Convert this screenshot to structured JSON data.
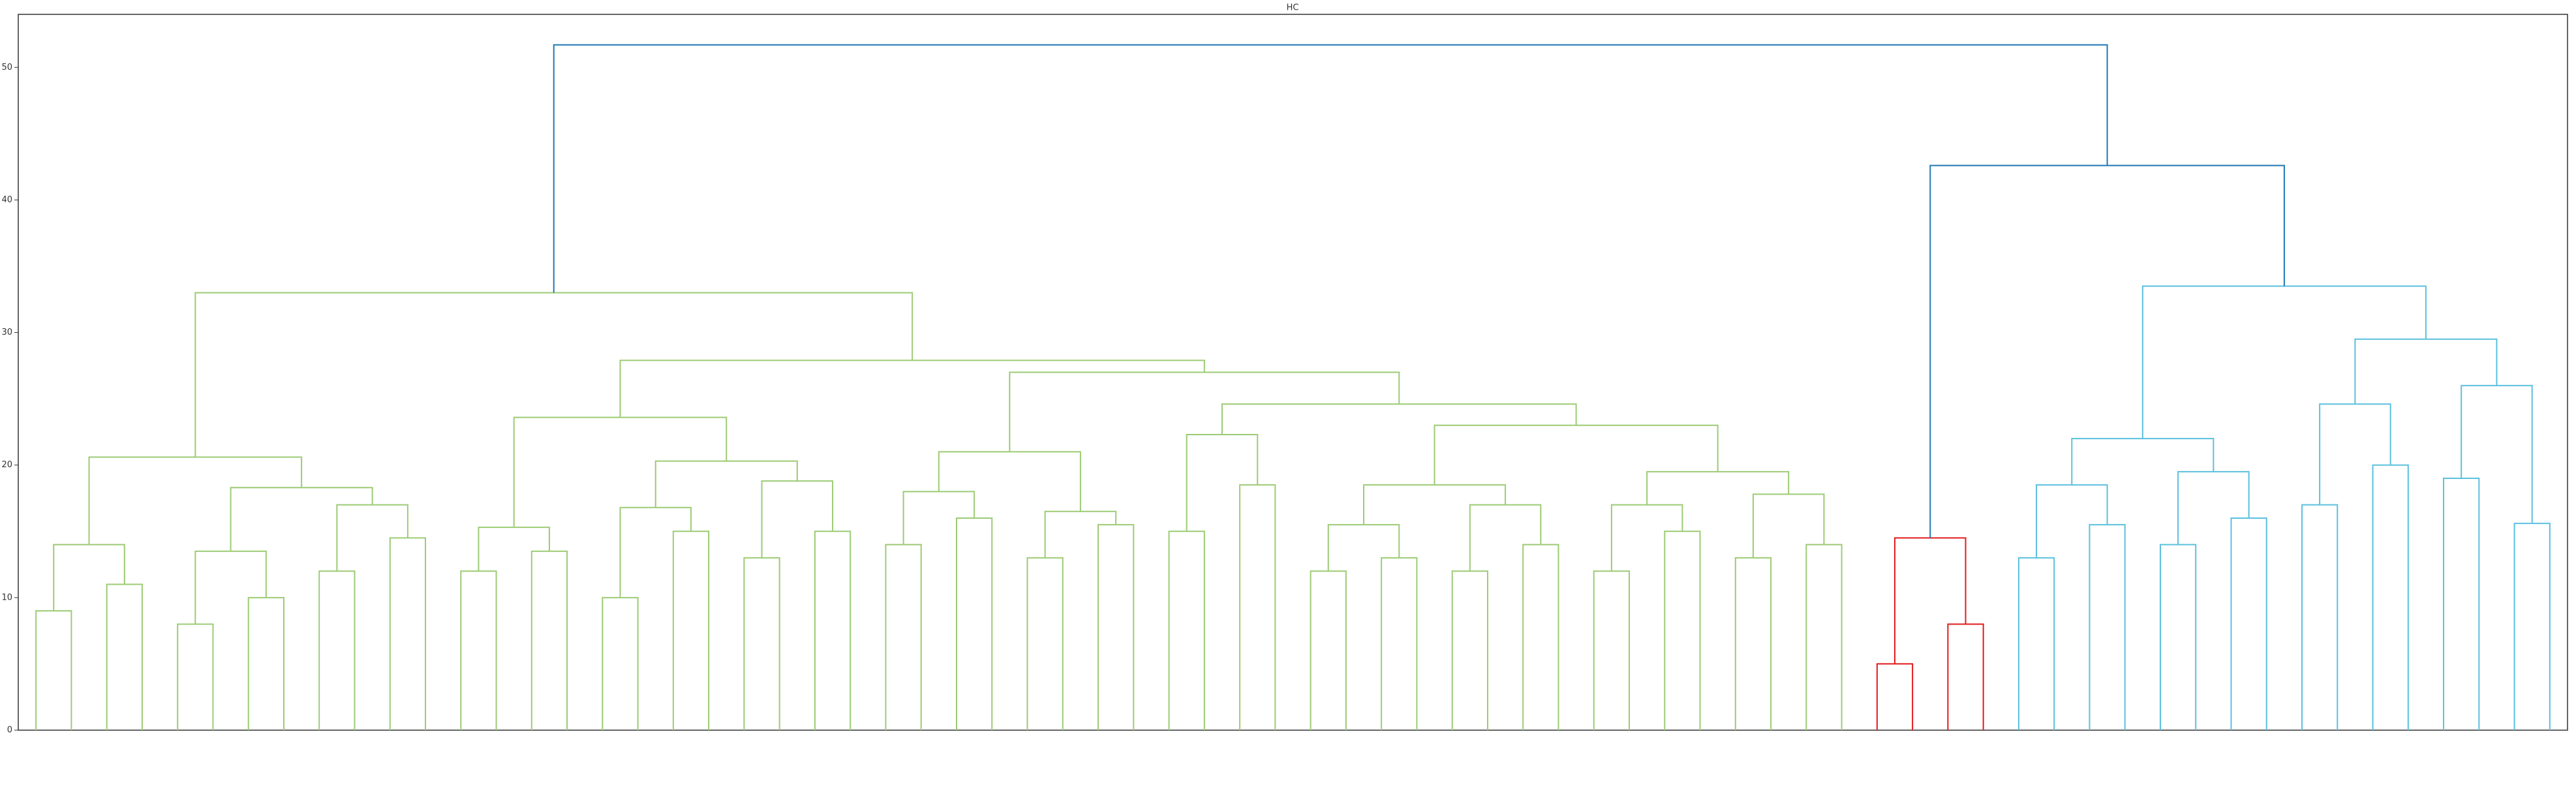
{
  "chart_data": {
    "type": "dendrogram",
    "title": "HC",
    "ylim": [
      0,
      54
    ],
    "yticks": [
      0,
      10,
      20,
      30,
      40,
      50
    ],
    "tree": {
      "height": 51.7,
      "color": "#1f78b4",
      "children": [
        {
          "height": 33,
          "color": "#9ccb74",
          "children": [
            {
              "height": 20.6,
              "children": [
                {
                  "height": 14,
                  "children": [
                    {
                      "height": 9
                    },
                    {
                      "height": 11
                    }
                  ]
                },
                {
                  "height": 18.3,
                  "children": [
                    {
                      "height": 13.5,
                      "children": [
                        {
                          "height": 8
                        },
                        {
                          "height": 10
                        }
                      ]
                    },
                    {
                      "height": 17,
                      "children": [
                        {
                          "height": 12
                        },
                        {
                          "height": 14.5
                        }
                      ]
                    }
                  ]
                }
              ]
            },
            {
              "height": 27.9,
              "children": [
                {
                  "height": 23.6,
                  "children": [
                    {
                      "height": 15.3,
                      "children": [
                        {
                          "height": 12
                        },
                        {
                          "height": 13.5
                        }
                      ]
                    },
                    {
                      "height": 20.3,
                      "children": [
                        {
                          "height": 16.8,
                          "children": [
                            {
                              "height": 10
                            },
                            {
                              "height": 15
                            }
                          ]
                        },
                        {
                          "height": 18.8,
                          "children": [
                            {
                              "height": 13
                            },
                            {
                              "height": 15
                            }
                          ]
                        }
                      ]
                    }
                  ]
                },
                {
                  "height": 27,
                  "children": [
                    {
                      "height": 21,
                      "children": [
                        {
                          "height": 18,
                          "children": [
                            {
                              "height": 14
                            },
                            {
                              "height": 16
                            }
                          ]
                        },
                        {
                          "height": 16.5,
                          "children": [
                            {
                              "height": 13
                            },
                            {
                              "height": 15.5
                            }
                          ]
                        }
                      ]
                    },
                    {
                      "height": 24.6,
                      "children": [
                        {
                          "height": 22.3,
                          "children": [
                            {
                              "height": 15
                            },
                            {
                              "height": 18.5
                            }
                          ]
                        },
                        {
                          "height": 23,
                          "children": [
                            {
                              "height": 18.5,
                              "children": [
                                {
                                  "height": 15.5,
                                  "children": [
                                    {
                                      "height": 12
                                    },
                                    {
                                      "height": 13
                                    }
                                  ]
                                },
                                {
                                  "height": 17,
                                  "children": [
                                    {
                                      "height": 12
                                    },
                                    {
                                      "height": 14
                                    }
                                  ]
                                }
                              ]
                            },
                            {
                              "height": 19.5,
                              "children": [
                                {
                                  "height": 17,
                                  "children": [
                                    {
                                      "height": 12
                                    },
                                    {
                                      "height": 15
                                    }
                                  ]
                                },
                                {
                                  "height": 17.8,
                                  "children": [
                                    {
                                      "height": 13
                                    },
                                    {
                                      "height": 14
                                    }
                                  ]
                                }
                              ]
                            }
                          ]
                        }
                      ]
                    }
                  ]
                }
              ]
            }
          ]
        },
        {
          "height": 42.6,
          "children": [
            {
              "height": 14.5,
              "color": "#e31a1c",
              "children": [
                {
                  "height": 5
                },
                {
                  "height": 8
                }
              ]
            },
            {
              "height": 33.5,
              "color": "#5bc0de",
              "children": [
                {
                  "height": 22,
                  "children": [
                    {
                      "height": 18.5,
                      "children": [
                        {
                          "height": 13
                        },
                        {
                          "height": 15.5
                        }
                      ]
                    },
                    {
                      "height": 19.5,
                      "children": [
                        {
                          "height": 14
                        },
                        {
                          "height": 16
                        }
                      ]
                    }
                  ]
                },
                {
                  "height": 29.5,
                  "children": [
                    {
                      "height": 24.6,
                      "children": [
                        {
                          "height": 17
                        },
                        {
                          "height": 20
                        }
                      ]
                    },
                    {
                      "height": 26,
                      "children": [
                        {
                          "height": 19
                        },
                        {
                          "height": 15.6
                        }
                      ]
                    }
                  ]
                }
              ]
            }
          ]
        }
      ]
    }
  }
}
